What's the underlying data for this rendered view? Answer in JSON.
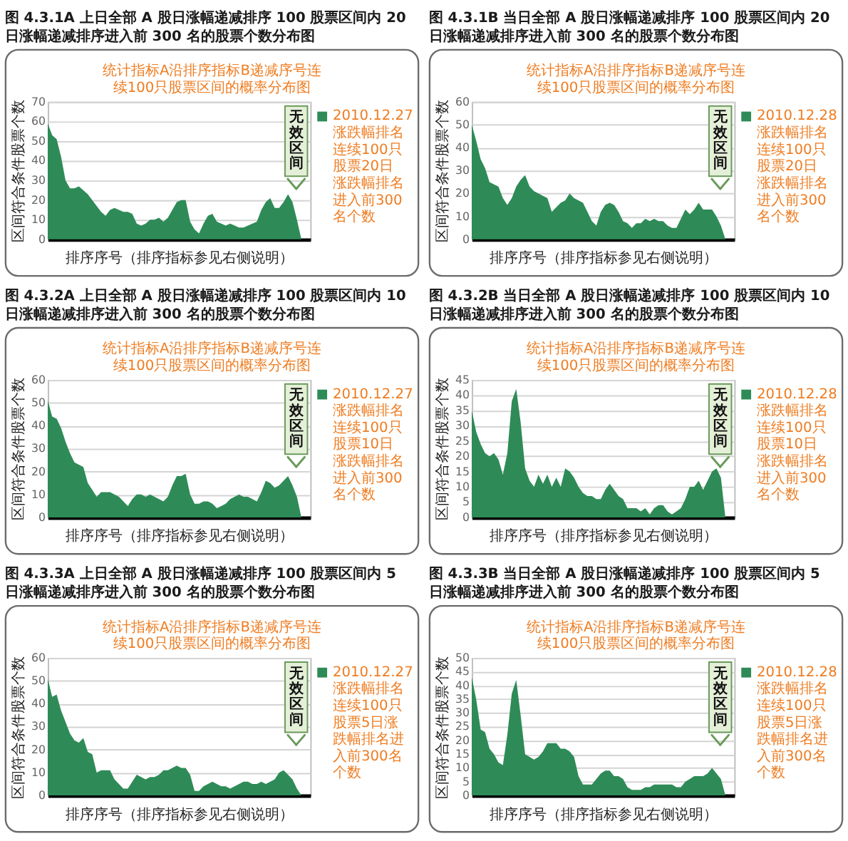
{
  "chart_data": [
    {
      "type": "area",
      "title": "图 4.3.1A 上日全部 A 股日涨幅递减排序 100 股票区间内 20 日涨幅递减排序进入前 300 名的股票个数分布图",
      "subtitle": "统计指标A沿排序指标B递减序号连续100只股票区间的概率分布图",
      "xlabel": "排序序号（排序指标参见右侧说明）",
      "ylabel": "区间符合条件股票个数",
      "categories": [
        null,
        null,
        null,
        null,
        null,
        null,
        null,
        null,
        null,
        null,
        null,
        null,
        null,
        null,
        null,
        null,
        null,
        null,
        null,
        null,
        null,
        null,
        null,
        null,
        null,
        null,
        null,
        null,
        null,
        null,
        null,
        null,
        null,
        null,
        null,
        null,
        null,
        null,
        null,
        null,
        null,
        null,
        null,
        null,
        null,
        null,
        null,
        null,
        null,
        null,
        null,
        null,
        null,
        null,
        null,
        null,
        null,
        null,
        null,
        null
      ],
      "series": [
        {
          "name": "2010.12.27涨跌幅排名连续100只股票20日涨跌幅排名进入前300名个数",
          "color": "#2e8b57",
          "values": [
            59,
            53,
            51,
            42,
            30,
            26,
            26,
            27,
            25,
            23,
            20,
            17,
            14,
            12,
            15,
            16,
            15,
            14,
            14,
            13,
            8,
            7,
            8,
            10,
            10,
            11,
            9,
            11,
            15,
            19,
            20,
            20,
            9,
            5,
            3,
            8,
            12,
            13,
            9,
            8,
            7,
            8,
            7,
            6,
            6,
            7,
            8,
            9,
            15,
            19,
            21,
            16,
            16,
            19,
            23,
            19,
            10,
            0,
            0,
            0
          ]
        }
      ],
      "ylim": [
        0,
        70
      ],
      "yticks": [
        0,
        10,
        20,
        30,
        40,
        50,
        60,
        70
      ],
      "grid": "y",
      "legend": "right",
      "tick_labels": "y",
      "annotations": [
        "无效区间"
      ]
    },
    {
      "type": "area",
      "title": "图 4.3.1B 当日全部 A 股日涨幅递减排序 100 股票区间内 20 日涨幅递减排序进入前 300 名的股票个数分布图",
      "subtitle": "统计指标A沿排序指标B递减序号连续100只股票区间的概率分布图",
      "xlabel": "排序序号（排序指标参见右侧说明）",
      "ylabel": "区间符合条件股票个数",
      "categories": [
        null,
        null,
        null,
        null,
        null,
        null,
        null,
        null,
        null,
        null,
        null,
        null,
        null,
        null,
        null,
        null,
        null,
        null,
        null,
        null,
        null,
        null,
        null,
        null,
        null,
        null,
        null,
        null,
        null,
        null,
        null,
        null,
        null,
        null,
        null,
        null,
        null,
        null,
        null,
        null,
        null,
        null,
        null,
        null,
        null,
        null,
        null,
        null,
        null,
        null,
        null,
        null,
        null,
        null,
        null,
        null,
        null,
        null,
        null,
        null
      ],
      "series": [
        {
          "name": "2010.12.28涨跌幅排名连续100只股票20日涨跌幅排名进入前300名个数",
          "color": "#2e8b57",
          "values": [
            50,
            43,
            35,
            31,
            25,
            24,
            23,
            18,
            15,
            18,
            23,
            26,
            28,
            23,
            21,
            20,
            19,
            18,
            12,
            14,
            16,
            17,
            20,
            18,
            17,
            16,
            12,
            8,
            6,
            12,
            15,
            16,
            15,
            12,
            8,
            7,
            5,
            7,
            7,
            9,
            8,
            9,
            8,
            8,
            6,
            5,
            5,
            9,
            13,
            11,
            13,
            16,
            13,
            13,
            13,
            10,
            6,
            0,
            0,
            0
          ]
        }
      ],
      "ylim": [
        0,
        60
      ],
      "yticks": [
        0,
        10,
        20,
        30,
        40,
        50,
        60
      ],
      "grid": "y",
      "legend": "right",
      "tick_labels": "y",
      "annotations": [
        "无效区间"
      ]
    },
    {
      "type": "area",
      "title": "图 4.3.2A 上日全部 A 股日涨幅递减排序 100 股票区间内 10 日涨幅递减排序进入前 300 名的股票个数分布图",
      "subtitle": "统计指标A沿排序指标B递减序号连续100只股票区间的概率分布图",
      "xlabel": "排序序号（排序指标参见右侧说明）",
      "ylabel": "区间符合条件股票个数",
      "categories": [
        null,
        null,
        null,
        null,
        null,
        null,
        null,
        null,
        null,
        null,
        null,
        null,
        null,
        null,
        null,
        null,
        null,
        null,
        null,
        null,
        null,
        null,
        null,
        null,
        null,
        null,
        null,
        null,
        null,
        null,
        null,
        null,
        null,
        null,
        null,
        null,
        null,
        null,
        null,
        null,
        null,
        null,
        null,
        null,
        null,
        null,
        null,
        null,
        null,
        null,
        null,
        null,
        null,
        null,
        null,
        null,
        null,
        null,
        null,
        null
      ],
      "series": [
        {
          "name": "2010.12.27涨跌幅排名连续100只股票10日涨跌幅排名进入前300名个数",
          "color": "#2e8b57",
          "values": [
            51,
            44,
            43,
            39,
            33,
            28,
            24,
            23,
            22,
            15,
            12,
            9,
            11,
            11,
            11,
            10,
            9,
            7,
            5,
            8,
            10,
            10,
            9,
            10,
            9,
            8,
            7,
            9,
            14,
            18,
            18,
            19,
            10,
            6,
            6,
            7,
            7,
            6,
            4,
            5,
            6,
            8,
            9,
            10,
            9,
            9,
            8,
            7,
            11,
            16,
            15,
            13,
            14,
            16,
            18,
            14,
            9,
            0,
            0,
            0
          ]
        }
      ],
      "ylim": [
        0,
        60
      ],
      "yticks": [
        0,
        10,
        20,
        30,
        40,
        50,
        60
      ],
      "grid": "y",
      "legend": "right",
      "tick_labels": "y",
      "annotations": [
        "无效区间"
      ]
    },
    {
      "type": "area",
      "title": "图 4.3.2B 当日全部 A 股日涨幅递减排序 100 股票区间内 10 日涨幅递减排序进入前 300 名的股票个数分布图",
      "subtitle": "统计指标A沿排序指标B递减序号连续100只股票区间的概率分布图",
      "xlabel": "排序序号（排序指标参见右侧说明）",
      "ylabel": "区间符合条件股票个数",
      "categories": [
        null,
        null,
        null,
        null,
        null,
        null,
        null,
        null,
        null,
        null,
        null,
        null,
        null,
        null,
        null,
        null,
        null,
        null,
        null,
        null,
        null,
        null,
        null,
        null,
        null,
        null,
        null,
        null,
        null,
        null,
        null,
        null,
        null,
        null,
        null,
        null,
        null,
        null,
        null,
        null,
        null,
        null,
        null,
        null,
        null,
        null,
        null,
        null,
        null,
        null,
        null,
        null,
        null,
        null,
        null,
        null,
        null,
        null,
        null,
        null
      ],
      "series": [
        {
          "name": "2010.12.28涨跌幅排名连续100只股票10日涨跌幅排名进入前300名个数",
          "color": "#2e8b57",
          "values": [
            35,
            28,
            24,
            21,
            20,
            21,
            19,
            14,
            21,
            38,
            42,
            31,
            16,
            12,
            10,
            14,
            11,
            14,
            10,
            13,
            10,
            16,
            15,
            13,
            10,
            8,
            7,
            7,
            6,
            6,
            9,
            11,
            9,
            7,
            6,
            3,
            3,
            3,
            2,
            3,
            1,
            3,
            4,
            4,
            2,
            1,
            2,
            3,
            6,
            10,
            10,
            12,
            9,
            12,
            15,
            16,
            13,
            0,
            0,
            0
          ]
        }
      ],
      "ylim": [
        0,
        45
      ],
      "yticks": [
        0,
        5,
        10,
        15,
        20,
        25,
        30,
        35,
        40,
        45
      ],
      "grid": "y",
      "legend": "right",
      "tick_labels": "y",
      "annotations": [
        "无效区间"
      ]
    },
    {
      "type": "area",
      "title": "图 4.3.3A 上日全部 A 股日涨幅递减排序 100 股票区间内 5 日涨幅递减排序进入前 300 名的股票个数分布图",
      "subtitle": "统计指标A沿排序指标B递减序号连续100只股票区间的概率分布图",
      "xlabel": "排序序号（排序指标参见右侧说明）",
      "ylabel": "区间符合条件股票个数",
      "categories": [
        null,
        null,
        null,
        null,
        null,
        null,
        null,
        null,
        null,
        null,
        null,
        null,
        null,
        null,
        null,
        null,
        null,
        null,
        null,
        null,
        null,
        null,
        null,
        null,
        null,
        null,
        null,
        null,
        null,
        null,
        null,
        null,
        null,
        null,
        null,
        null,
        null,
        null,
        null,
        null,
        null,
        null,
        null,
        null,
        null,
        null,
        null,
        null,
        null,
        null,
        null,
        null,
        null,
        null,
        null,
        null,
        null,
        null,
        null,
        null
      ],
      "series": [
        {
          "name": "2010.12.27涨跌幅排名连续100只股票5日涨跌幅排名进入前300名个数",
          "color": "#2e8b57",
          "values": [
            51,
            43,
            44,
            37,
            32,
            27,
            24,
            23,
            25,
            19,
            18,
            10,
            11,
            11,
            11,
            7,
            5,
            3,
            3,
            6,
            9,
            8,
            7,
            8,
            8,
            9,
            11,
            11,
            12,
            13,
            12,
            12,
            9,
            2,
            2,
            4,
            5,
            6,
            5,
            4,
            4,
            3,
            4,
            5,
            6,
            6,
            5,
            5,
            6,
            5,
            6,
            7,
            10,
            11,
            9,
            7,
            3,
            0,
            0,
            0
          ]
        }
      ],
      "ylim": [
        0,
        60
      ],
      "yticks": [
        0,
        10,
        20,
        30,
        40,
        50,
        60
      ],
      "grid": "y",
      "legend": "right",
      "tick_labels": "y",
      "annotations": [
        "无效区间"
      ]
    },
    {
      "type": "area",
      "title": "图 4.3.3B 当日全部 A 股日涨幅递减排序 100 股票区间内 5 日涨幅递减排序进入前 300 名的股票个数分布图",
      "subtitle": "统计指标A沿排序指标B递减序号连续100只股票区间的概率分布图",
      "xlabel": "排序序号（排序指标参见右侧说明）",
      "ylabel": "区间符合条件股票个数",
      "categories": [
        null,
        null,
        null,
        null,
        null,
        null,
        null,
        null,
        null,
        null,
        null,
        null,
        null,
        null,
        null,
        null,
        null,
        null,
        null,
        null,
        null,
        null,
        null,
        null,
        null,
        null,
        null,
        null,
        null,
        null,
        null,
        null,
        null,
        null,
        null,
        null,
        null,
        null,
        null,
        null,
        null,
        null,
        null,
        null,
        null,
        null,
        null,
        null,
        null,
        null,
        null,
        null,
        null,
        null,
        null,
        null,
        null,
        null,
        null,
        null
      ],
      "series": [
        {
          "name": "2010.12.28涨跌幅排名连续100只股票5日涨跌幅排名进入前300名个数",
          "color": "#2e8b57",
          "values": [
            43,
            35,
            24,
            23,
            17,
            15,
            12,
            11,
            22,
            37,
            42,
            29,
            15,
            14,
            13,
            14,
            16,
            19,
            19,
            19,
            17,
            17,
            16,
            14,
            7,
            4,
            4,
            4,
            6,
            8,
            9,
            9,
            7,
            7,
            6,
            3,
            2,
            2,
            2,
            3,
            3,
            4,
            4,
            4,
            4,
            4,
            3,
            3,
            5,
            6,
            7,
            7,
            7,
            8,
            10,
            8,
            6,
            0,
            0,
            0
          ]
        }
      ],
      "ylim": [
        0,
        50
      ],
      "yticks": [
        0,
        5,
        10,
        15,
        20,
        25,
        30,
        35,
        40,
        45,
        50
      ],
      "grid": "y",
      "legend": "right",
      "tick_labels": "y",
      "annotations": [
        "无效区间"
      ]
    }
  ]
}
